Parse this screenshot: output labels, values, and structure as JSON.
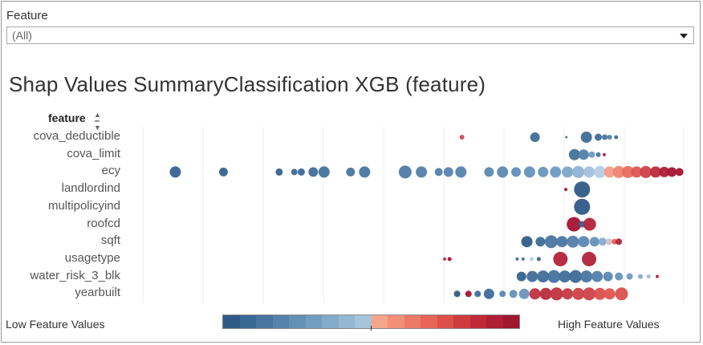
{
  "filter": {
    "label": "Feature",
    "selected_value": "(All)"
  },
  "title": "Shap Values SummaryClassification XGB (feature)",
  "column_header": "feature",
  "sort_icon": "sort-ascending-icon",
  "legend": {
    "low_label": "Low Feature Values",
    "high_label": "High Feature Values",
    "colors": [
      "#2e5a87",
      "#3a6895",
      "#4775a0",
      "#5583ab",
      "#6390b5",
      "#729ebf",
      "#83abca",
      "#94b8d3",
      "#a6c5dd",
      "#f4a58a",
      "#f18f77",
      "#ec7a66",
      "#e56556",
      "#dc5049",
      "#cf3c3e",
      "#c02a37",
      "#af1e33",
      "#a0172e"
    ]
  },
  "chart_data": {
    "type": "scatter",
    "title": "Shap Values SummaryClassification XGB (feature)",
    "xlabel": "",
    "ylabel": "feature",
    "categories": [
      "cova_deductible",
      "cova_limit",
      "ecy",
      "landlordind",
      "multipolicyind",
      "roofcd",
      "sqft",
      "usagetype",
      "water_risk_3_blk",
      "yearbuilt"
    ],
    "xlim": [
      0,
      100
    ],
    "series": [
      {
        "name": "cova_deductible",
        "points": [
          {
            "x": 59.0,
            "v": 0.82,
            "s": 3
          },
          {
            "x": 72.5,
            "v": 0.1,
            "s": 6
          },
          {
            "x": 78.3,
            "v": 0.1,
            "s": 1.5
          },
          {
            "x": 82.0,
            "v": 0.1,
            "s": 7
          },
          {
            "x": 84.2,
            "v": 0.1,
            "s": 4.5
          },
          {
            "x": 85.4,
            "v": 0.15,
            "s": 3.5
          },
          {
            "x": 86.3,
            "v": 0.2,
            "s": 3
          },
          {
            "x": 87.5,
            "v": 0.1,
            "s": 2.5
          }
        ]
      },
      {
        "name": "cova_limit",
        "points": [
          {
            "x": 79.8,
            "v": 0.12,
            "s": 7
          },
          {
            "x": 81.5,
            "v": 0.2,
            "s": 6.5
          },
          {
            "x": 83.0,
            "v": 0.35,
            "s": 4
          },
          {
            "x": 84.2,
            "v": 0.15,
            "s": 3
          },
          {
            "x": 85.3,
            "v": 0.95,
            "s": 2
          }
        ]
      },
      {
        "name": "ecy",
        "points": [
          {
            "x": 6.0,
            "v": 0.05,
            "s": 7
          },
          {
            "x": 14.9,
            "v": 0.05,
            "s": 5.5
          },
          {
            "x": 25.2,
            "v": 0.05,
            "s": 4.5
          },
          {
            "x": 28.0,
            "v": 0.08,
            "s": 4
          },
          {
            "x": 29.3,
            "v": 0.08,
            "s": 4.5
          },
          {
            "x": 31.5,
            "v": 0.1,
            "s": 6
          },
          {
            "x": 33.5,
            "v": 0.12,
            "s": 7
          },
          {
            "x": 38.4,
            "v": 0.15,
            "s": 5.5
          },
          {
            "x": 41.0,
            "v": 0.15,
            "s": 7
          },
          {
            "x": 48.5,
            "v": 0.18,
            "s": 8
          },
          {
            "x": 51.5,
            "v": 0.2,
            "s": 7
          },
          {
            "x": 54.7,
            "v": 0.2,
            "s": 5
          },
          {
            "x": 56.5,
            "v": 0.22,
            "s": 6
          },
          {
            "x": 58.8,
            "v": 0.22,
            "s": 7
          },
          {
            "x": 64.0,
            "v": 0.25,
            "s": 6
          },
          {
            "x": 66.5,
            "v": 0.25,
            "s": 7
          },
          {
            "x": 69.0,
            "v": 0.28,
            "s": 6
          },
          {
            "x": 71.5,
            "v": 0.3,
            "s": 7
          },
          {
            "x": 74.0,
            "v": 0.32,
            "s": 6.5
          },
          {
            "x": 76.3,
            "v": 0.35,
            "s": 7
          },
          {
            "x": 78.5,
            "v": 0.38,
            "s": 7
          },
          {
            "x": 80.5,
            "v": 0.42,
            "s": 7.5
          },
          {
            "x": 82.5,
            "v": 0.46,
            "s": 7
          },
          {
            "x": 84.5,
            "v": 0.5,
            "s": 7.5
          },
          {
            "x": 86.3,
            "v": 0.6,
            "s": 7
          },
          {
            "x": 88.0,
            "v": 0.66,
            "s": 7.5
          },
          {
            "x": 89.7,
            "v": 0.72,
            "s": 7.5
          },
          {
            "x": 91.3,
            "v": 0.78,
            "s": 7
          },
          {
            "x": 93.0,
            "v": 0.85,
            "s": 7.5
          },
          {
            "x": 94.8,
            "v": 0.92,
            "s": 7
          },
          {
            "x": 96.4,
            "v": 0.97,
            "s": 6.5
          },
          {
            "x": 97.8,
            "v": 1.0,
            "s": 6
          },
          {
            "x": 99.2,
            "v": 1.0,
            "s": 5
          }
        ]
      },
      {
        "name": "landlordind",
        "points": [
          {
            "x": 78.2,
            "v": 1.0,
            "s": 2
          },
          {
            "x": 81.2,
            "v": 0.0,
            "s": 10
          }
        ]
      },
      {
        "name": "multipolicyind",
        "points": [
          {
            "x": 81.2,
            "v": 0.0,
            "s": 10
          }
        ]
      },
      {
        "name": "roofcd",
        "points": [
          {
            "x": 79.7,
            "v": 1.0,
            "s": 9
          },
          {
            "x": 81.2,
            "v": 0.05,
            "s": 4
          },
          {
            "x": 82.6,
            "v": 0.95,
            "s": 8
          }
        ]
      },
      {
        "name": "sqft",
        "points": [
          {
            "x": 71.0,
            "v": 0.02,
            "s": 7
          },
          {
            "x": 73.5,
            "v": 0.08,
            "s": 6
          },
          {
            "x": 75.5,
            "v": 0.15,
            "s": 8
          },
          {
            "x": 77.5,
            "v": 0.15,
            "s": 7
          },
          {
            "x": 79.5,
            "v": 0.2,
            "s": 7.5
          },
          {
            "x": 81.5,
            "v": 0.25,
            "s": 7
          },
          {
            "x": 83.5,
            "v": 0.3,
            "s": 6
          },
          {
            "x": 85.0,
            "v": 0.4,
            "s": 5
          },
          {
            "x": 86.2,
            "v": 0.52,
            "s": 4
          },
          {
            "x": 87.2,
            "v": 0.75,
            "s": 3.5
          },
          {
            "x": 88.0,
            "v": 0.95,
            "s": 4
          }
        ]
      },
      {
        "name": "usagetype",
        "points": [
          {
            "x": 55.8,
            "v": 0.9,
            "s": 2
          },
          {
            "x": 56.7,
            "v": 1.0,
            "s": 2.5
          },
          {
            "x": 69.2,
            "v": 0.1,
            "s": 2
          },
          {
            "x": 70.3,
            "v": 0.1,
            "s": 2
          },
          {
            "x": 71.9,
            "v": 0.5,
            "s": 2.5
          },
          {
            "x": 73.2,
            "v": 0.05,
            "s": 2.5
          },
          {
            "x": 77.2,
            "v": 0.95,
            "s": 9
          },
          {
            "x": 82.5,
            "v": 0.95,
            "s": 9
          }
        ]
      },
      {
        "name": "water_risk_3_blk",
        "points": [
          {
            "x": 70.0,
            "v": 0.05,
            "s": 6
          },
          {
            "x": 72.0,
            "v": 0.1,
            "s": 7
          },
          {
            "x": 74.0,
            "v": 0.1,
            "s": 7.5
          },
          {
            "x": 76.0,
            "v": 0.12,
            "s": 8
          },
          {
            "x": 78.0,
            "v": 0.1,
            "s": 7.5
          },
          {
            "x": 80.0,
            "v": 0.08,
            "s": 8
          },
          {
            "x": 82.0,
            "v": 0.15,
            "s": 7.5
          },
          {
            "x": 84.0,
            "v": 0.2,
            "s": 7
          },
          {
            "x": 86.0,
            "v": 0.25,
            "s": 6
          },
          {
            "x": 88.0,
            "v": 0.3,
            "s": 5
          },
          {
            "x": 90.0,
            "v": 0.35,
            "s": 4
          },
          {
            "x": 92.0,
            "v": 0.4,
            "s": 3
          },
          {
            "x": 93.5,
            "v": 0.45,
            "s": 2.5
          },
          {
            "x": 95.1,
            "v": 0.95,
            "s": 2
          }
        ]
      },
      {
        "name": "yearbuilt",
        "points": [
          {
            "x": 58.1,
            "v": 0.0,
            "s": 4
          },
          {
            "x": 60.2,
            "v": 1.0,
            "s": 4
          },
          {
            "x": 61.9,
            "v": 0.1,
            "s": 4
          },
          {
            "x": 64.0,
            "v": 0.1,
            "s": 6.5
          },
          {
            "x": 66.5,
            "v": 0.25,
            "s": 4
          },
          {
            "x": 68.5,
            "v": 0.3,
            "s": 5
          },
          {
            "x": 70.5,
            "v": 0.32,
            "s": 6.5
          },
          {
            "x": 72.5,
            "v": 0.9,
            "s": 7
          },
          {
            "x": 74.5,
            "v": 0.92,
            "s": 7.5
          },
          {
            "x": 76.5,
            "v": 0.9,
            "s": 8
          },
          {
            "x": 78.5,
            "v": 0.88,
            "s": 7
          },
          {
            "x": 80.5,
            "v": 0.85,
            "s": 7.5
          },
          {
            "x": 82.5,
            "v": 0.85,
            "s": 8
          },
          {
            "x": 84.5,
            "v": 0.8,
            "s": 7.5
          },
          {
            "x": 86.3,
            "v": 0.78,
            "s": 7
          },
          {
            "x": 88.5,
            "v": 0.8,
            "s": 8
          }
        ]
      }
    ]
  }
}
